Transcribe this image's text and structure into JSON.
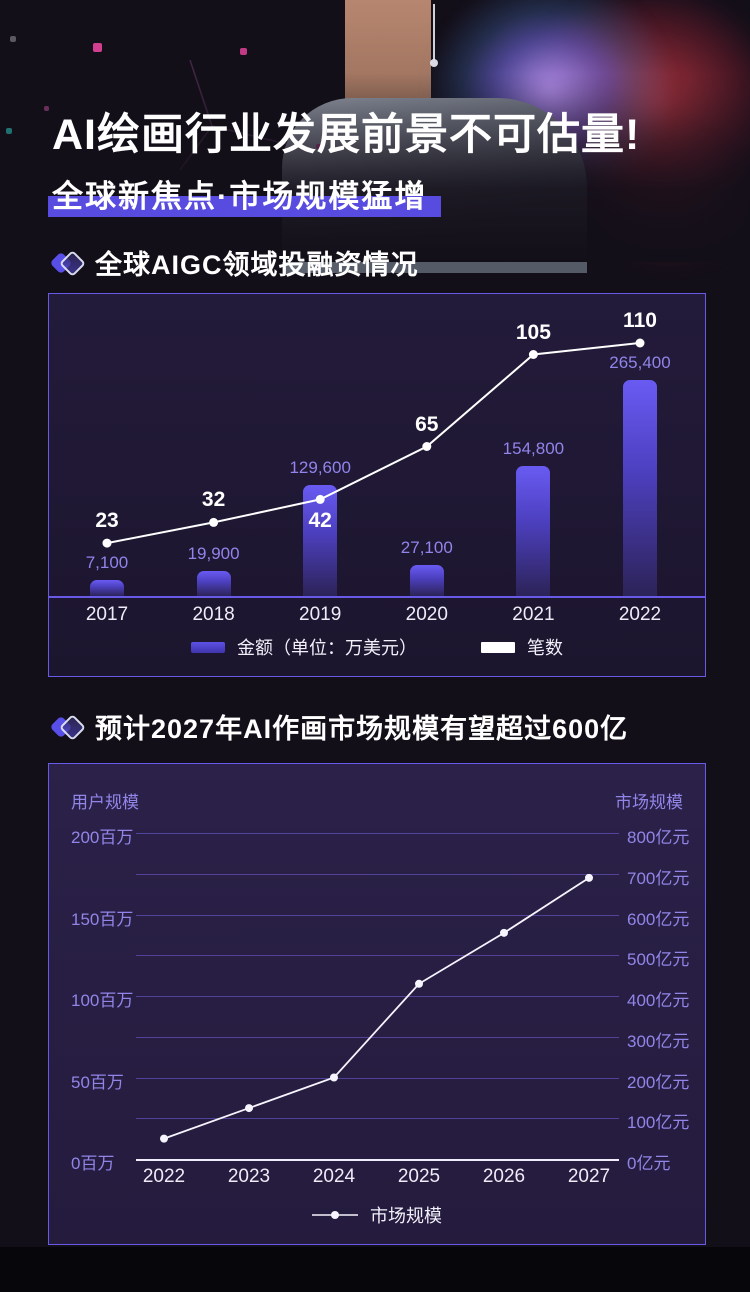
{
  "header": {
    "title": "AI绘画行业发展前景不可估量!",
    "subtitle": "全球新焦点·市场规模猛增"
  },
  "sections": [
    {
      "title": "全球AIGC领域投融资情况"
    },
    {
      "title": "预计2027年AI作画市场规模有望超过600亿"
    }
  ],
  "colors": {
    "accent_purple": "#584be0",
    "panel_border": "#675ae6",
    "bar_top": "#695bf2",
    "bar_bottom": "#2c2358",
    "tick_label": "#9285e8",
    "bar_value_label": "#9184ea",
    "line_color": "#ffffff"
  },
  "chart_data": [
    {
      "type": "bar",
      "subtype": "bar+line combo",
      "categories": [
        "2017",
        "2018",
        "2019",
        "2020",
        "2021",
        "2022"
      ],
      "series": [
        {
          "name": "金额（单位：万美元）",
          "type": "bar",
          "values": [
            7100,
            19900,
            129600,
            27100,
            154800,
            265400
          ]
        },
        {
          "name": "笔数",
          "type": "line",
          "values": [
            23,
            32,
            42,
            65,
            105,
            110
          ]
        }
      ],
      "line_label_side": [
        "above",
        "above",
        "below",
        "above",
        "above",
        "above"
      ],
      "legend_position": "bottom",
      "grid": false
    },
    {
      "type": "line",
      "x": [
        "2022",
        "2023",
        "2024",
        "2025",
        "2026",
        "2027"
      ],
      "series": [
        {
          "name": "市场规模",
          "values": [
            50,
            125,
            200,
            430,
            555,
            690
          ],
          "unit": "亿元"
        }
      ],
      "left_axis": {
        "title": "用户规模",
        "ticks": [
          "200百万",
          "150百万",
          "100百万",
          "50百万",
          "0百万"
        ]
      },
      "right_axis": {
        "title": "市场规模",
        "ticks": [
          "800亿元",
          "700亿元",
          "600亿元",
          "500亿元",
          "400亿元",
          "300亿元",
          "200亿元",
          "100亿元",
          "0亿元"
        ],
        "min": 0,
        "max": 800
      },
      "legend_position": "bottom",
      "grid": true
    }
  ]
}
